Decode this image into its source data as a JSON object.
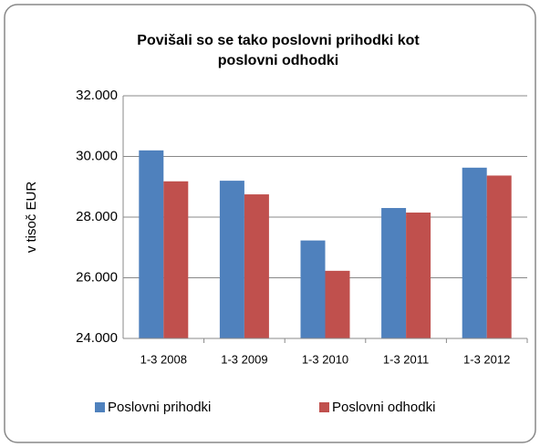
{
  "chart_data": {
    "type": "bar",
    "title": "Povišali so se tako poslovni prihodki kot poslovni odhodki",
    "y_label": "v tisoč EUR",
    "categories": [
      "1-3 2008",
      "1-3 2009",
      "1-3 2010",
      "1-3 2011",
      "1-3 2012"
    ],
    "series": [
      {
        "name": "Poslovni prihodki",
        "color": "#4f81bd",
        "values": [
          30200,
          29200,
          27230,
          28300,
          29630
        ]
      },
      {
        "name": "Poslovni odhodki",
        "color": "#c0504d",
        "values": [
          29180,
          28750,
          26230,
          28150,
          29370
        ]
      }
    ],
    "ylim": [
      24000,
      32000
    ],
    "yticks": [
      {
        "value": 24000,
        "label": "24.000"
      },
      {
        "value": 26000,
        "label": "26.000"
      },
      {
        "value": 28000,
        "label": "28.000"
      },
      {
        "value": 30000,
        "label": "30.000"
      },
      {
        "value": 32000,
        "label": "32.000"
      }
    ],
    "grid": true,
    "legend": "bottom"
  }
}
